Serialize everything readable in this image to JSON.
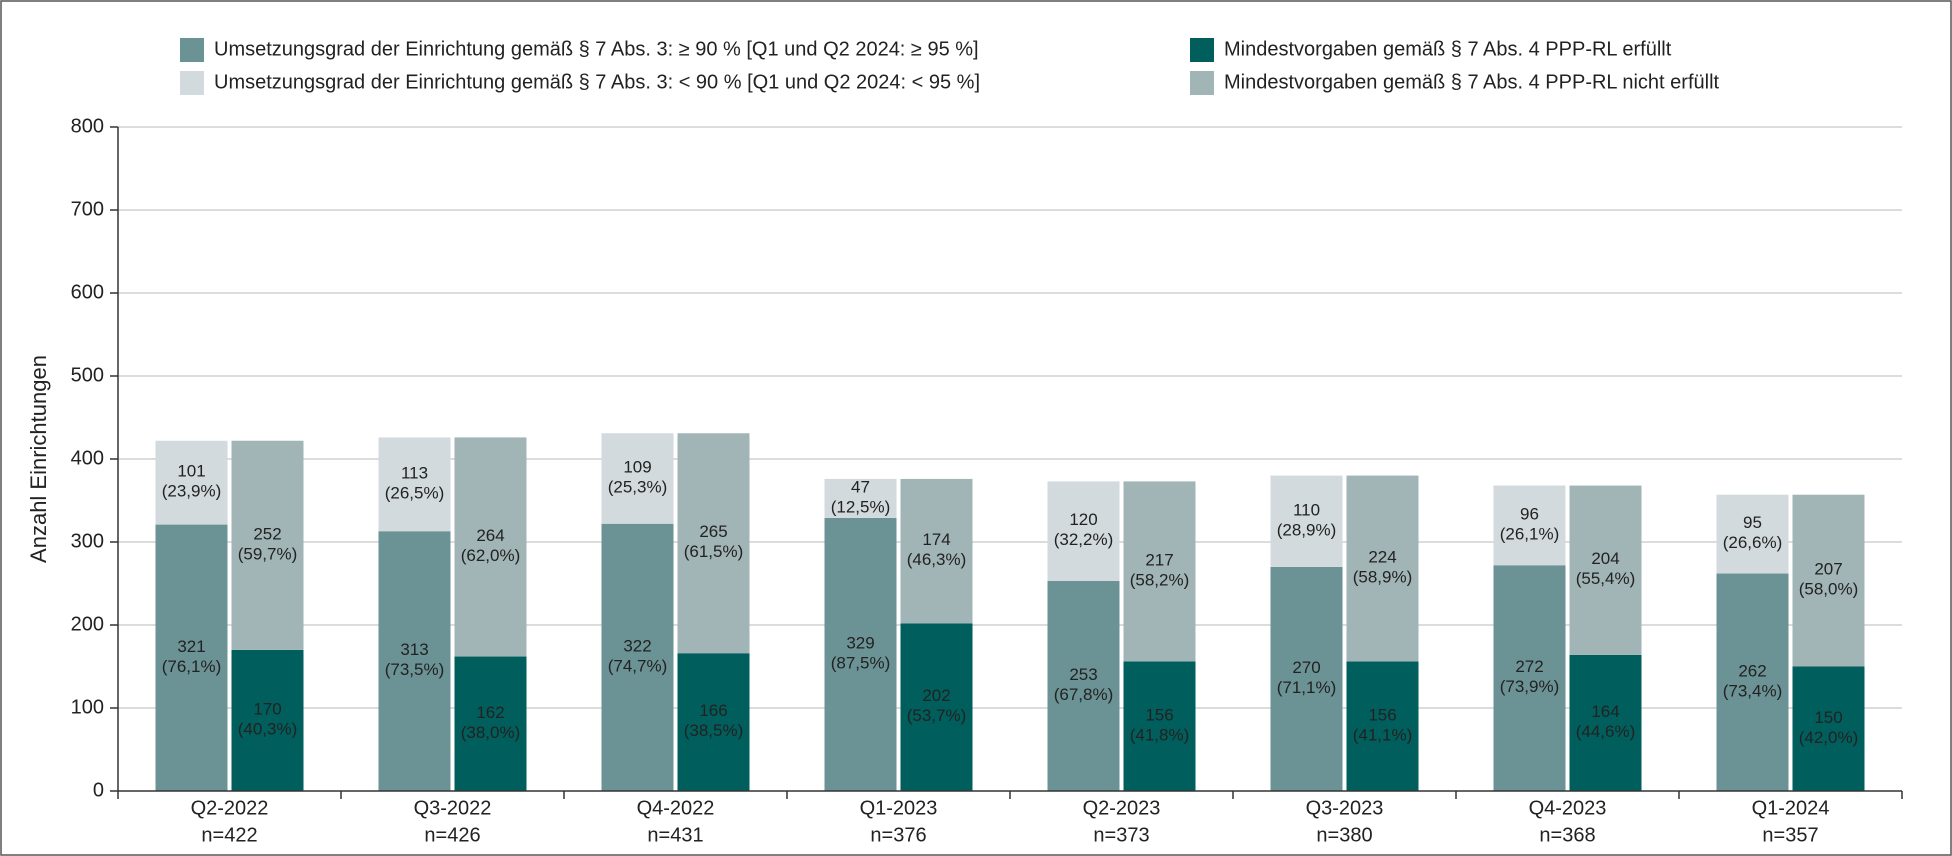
{
  "chart_data": {
    "type": "grouped_stacked_bar",
    "y_label": "Anzahl Einrichtungen",
    "categories": [
      "Q2-2022",
      "Q3-2022",
      "Q4-2022",
      "Q1-2023",
      "Q2-2023",
      "Q3-2023",
      "Q4-2023",
      "Q1-2024"
    ],
    "category_sublabels": [
      "n=422",
      "n=426",
      "n=431",
      "n=376",
      "n=373",
      "n=380",
      "n=368",
      "n=357"
    ],
    "ylim": [
      0,
      800
    ],
    "yticks": [
      0,
      100,
      200,
      300,
      400,
      500,
      600,
      700,
      800
    ],
    "grid": true,
    "series": [
      {
        "name": "Umsetzungsgrad der Einrichtung gemäß § 7 Abs. 3: ≥ 90 % [Q1 und Q2 2024: ≥ 95 %]",
        "color": "#6b9294",
        "stack": "a",
        "values": [
          321,
          313,
          322,
          329,
          253,
          270,
          272,
          262
        ],
        "value_labels": [
          "321\n(76,1%)",
          "313\n(73,5%)",
          "322\n(74,7%)",
          "329\n(87,5%)",
          "253\n(67,8%)",
          "270\n(71,1%)",
          "272\n(73,9%)",
          "262\n(73,4%)"
        ]
      },
      {
        "name": "Umsetzungsgrad der Einrichtung gemäß § 7 Abs. 3: < 90 % [Q1 und Q2 2024: < 95 %]",
        "color": "#d2dadd",
        "stack": "a",
        "values": [
          101,
          113,
          109,
          47,
          120,
          110,
          96,
          95
        ],
        "value_labels": [
          "101\n(23,9%)",
          "113\n(26,5%)",
          "109\n(25,3%)",
          "47\n(12,5%)",
          "120\n(32,2%)",
          "110\n(28,9%)",
          "96\n(26,1%)",
          "95\n(26,6%)"
        ]
      },
      {
        "name": "Mindestvorgaben gemäß § 7 Abs. 4 PPP-RL erfüllt",
        "color": "#005e5d",
        "stack": "b",
        "values": [
          170,
          162,
          166,
          202,
          156,
          156,
          164,
          150
        ],
        "value_labels": [
          "170\n(40,3%)",
          "162\n(38,0%)",
          "166\n(38,5%)",
          "202\n(53,7%)",
          "156\n(41,8%)",
          "156\n(41,1%)",
          "164\n(44,6%)",
          "150\n(42,0%)"
        ]
      },
      {
        "name": "Mindestvorgaben gemäß § 7 Abs. 4 PPP-RL nicht erfüllt",
        "color": "#a1b4b6",
        "stack": "b",
        "values": [
          252,
          264,
          265,
          174,
          217,
          224,
          204,
          207
        ],
        "value_labels": [
          "252\n(59,7%)",
          "264\n(62,0%)",
          "265\n(61,5%)",
          "174\n(46,3%)",
          "217\n(58,2%)",
          "224\n(58,9%)",
          "204\n(55,4%)",
          "207\n(58,0%)"
        ]
      }
    ]
  }
}
